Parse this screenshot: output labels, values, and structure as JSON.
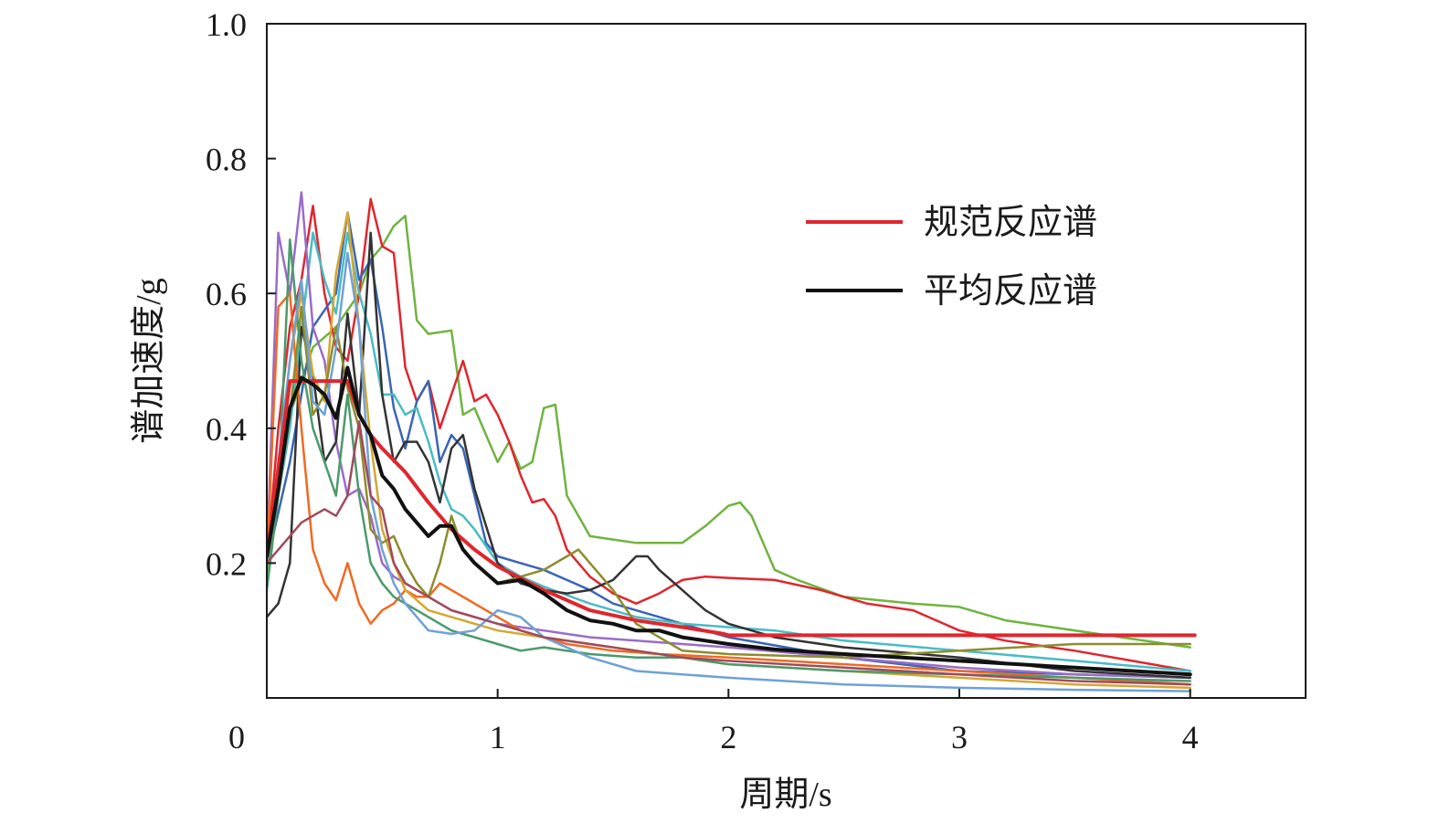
{
  "chart_data": {
    "type": "line",
    "xlabel": "周期/s",
    "ylabel": "谱加速度/g",
    "xlim": [
      0,
      4.5
    ],
    "ylim": [
      0,
      1.0
    ],
    "x_ticks": [
      {
        "value": 0,
        "label": "0"
      },
      {
        "value": 1,
        "label": "1"
      },
      {
        "value": 2,
        "label": "2"
      },
      {
        "value": 3,
        "label": "3"
      },
      {
        "value": 4,
        "label": "4"
      }
    ],
    "y_ticks": [
      {
        "value": 0.2,
        "label": "0.2"
      },
      {
        "value": 0.4,
        "label": "0.4"
      },
      {
        "value": 0.6,
        "label": "0.6"
      },
      {
        "value": 0.8,
        "label": "0.8"
      },
      {
        "value": 1.0,
        "label": "1.0"
      }
    ],
    "grid": false,
    "legend_position": "upper-right",
    "legend": [
      {
        "label": "规范反应谱",
        "color": "#e0262e"
      },
      {
        "label": "平均反应谱",
        "color": "#111111"
      }
    ],
    "series": [
      {
        "name": "规范反应谱",
        "color": "#e0262e",
        "width": 4,
        "x": [
          0.0,
          0.1,
          0.2,
          0.3,
          0.35,
          0.4,
          0.45,
          0.5,
          0.6,
          0.7,
          0.8,
          0.9,
          1.0,
          1.2,
          1.4,
          1.6,
          1.8,
          1.98,
          2.0,
          3.0,
          4.02
        ],
        "y": [
          0.21,
          0.47,
          0.47,
          0.47,
          0.47,
          0.42,
          0.39,
          0.37,
          0.335,
          0.29,
          0.25,
          0.22,
          0.195,
          0.16,
          0.13,
          0.115,
          0.105,
          0.095,
          0.093,
          0.093,
          0.093
        ]
      },
      {
        "name": "平均反应谱",
        "color": "#111111",
        "width": 4,
        "x": [
          0.0,
          0.05,
          0.1,
          0.15,
          0.2,
          0.25,
          0.3,
          0.35,
          0.4,
          0.45,
          0.5,
          0.55,
          0.6,
          0.7,
          0.75,
          0.8,
          0.85,
          0.9,
          1.0,
          1.1,
          1.2,
          1.3,
          1.4,
          1.5,
          1.6,
          1.7,
          1.8,
          1.9,
          2.0,
          2.2,
          2.5,
          3.0,
          3.5,
          4.0
        ],
        "y": [
          0.21,
          0.31,
          0.43,
          0.475,
          0.465,
          0.45,
          0.415,
          0.49,
          0.42,
          0.39,
          0.33,
          0.31,
          0.28,
          0.24,
          0.255,
          0.255,
          0.22,
          0.2,
          0.17,
          0.175,
          0.155,
          0.13,
          0.115,
          0.11,
          0.1,
          0.1,
          0.09,
          0.085,
          0.08,
          0.072,
          0.065,
          0.055,
          0.045,
          0.035
        ]
      },
      {
        "color": "#6fb43f",
        "width": 2.5,
        "x": [
          0.0,
          0.1,
          0.2,
          0.3,
          0.4,
          0.45,
          0.5,
          0.55,
          0.6,
          0.65,
          0.7,
          0.8,
          0.85,
          0.9,
          1.0,
          1.05,
          1.1,
          1.15,
          1.2,
          1.25,
          1.3,
          1.4,
          1.5,
          1.6,
          1.7,
          1.8,
          1.9,
          2.0,
          2.05,
          2.1,
          2.2,
          2.3,
          2.5,
          2.8,
          3.0,
          3.2,
          4.0
        ],
        "y": [
          0.18,
          0.42,
          0.52,
          0.55,
          0.6,
          0.65,
          0.67,
          0.7,
          0.715,
          0.56,
          0.54,
          0.545,
          0.42,
          0.43,
          0.35,
          0.38,
          0.34,
          0.35,
          0.43,
          0.435,
          0.3,
          0.24,
          0.235,
          0.23,
          0.23,
          0.23,
          0.255,
          0.285,
          0.29,
          0.27,
          0.19,
          0.175,
          0.15,
          0.14,
          0.135,
          0.115,
          0.075
        ]
      },
      {
        "color": "#e0262e",
        "width": 2.5,
        "x": [
          0.0,
          0.05,
          0.1,
          0.15,
          0.2,
          0.25,
          0.3,
          0.35,
          0.4,
          0.45,
          0.5,
          0.55,
          0.6,
          0.65,
          0.7,
          0.75,
          0.8,
          0.85,
          0.9,
          0.95,
          1.0,
          1.05,
          1.1,
          1.15,
          1.2,
          1.25,
          1.3,
          1.4,
          1.5,
          1.6,
          1.7,
          1.8,
          1.9,
          2.0,
          2.2,
          2.4,
          2.6,
          2.8,
          3.0,
          3.2,
          3.5,
          4.0
        ],
        "y": [
          0.2,
          0.4,
          0.55,
          0.62,
          0.73,
          0.6,
          0.52,
          0.5,
          0.6,
          0.74,
          0.67,
          0.66,
          0.49,
          0.44,
          0.47,
          0.4,
          0.45,
          0.5,
          0.44,
          0.45,
          0.42,
          0.38,
          0.33,
          0.29,
          0.295,
          0.27,
          0.22,
          0.18,
          0.155,
          0.14,
          0.155,
          0.175,
          0.18,
          0.178,
          0.175,
          0.16,
          0.14,
          0.13,
          0.1,
          0.085,
          0.07,
          0.04
        ]
      },
      {
        "color": "#3a65b4",
        "width": 2.5,
        "x": [
          0.0,
          0.1,
          0.2,
          0.3,
          0.35,
          0.4,
          0.45,
          0.5,
          0.55,
          0.6,
          0.65,
          0.7,
          0.75,
          0.8,
          0.85,
          0.9,
          0.95,
          1.0,
          1.1,
          1.2,
          1.3,
          1.4,
          1.5,
          1.7,
          2.0,
          2.5,
          3.0,
          3.5,
          4.0
        ],
        "y": [
          0.2,
          0.35,
          0.55,
          0.6,
          0.72,
          0.62,
          0.65,
          0.55,
          0.43,
          0.37,
          0.44,
          0.47,
          0.35,
          0.39,
          0.37,
          0.3,
          0.23,
          0.21,
          0.2,
          0.19,
          0.175,
          0.16,
          0.14,
          0.12,
          0.09,
          0.06,
          0.04,
          0.035,
          0.03
        ]
      },
      {
        "color": "#49bcc4",
        "width": 2.5,
        "x": [
          0.0,
          0.1,
          0.2,
          0.25,
          0.3,
          0.35,
          0.4,
          0.45,
          0.5,
          0.55,
          0.6,
          0.65,
          0.7,
          0.75,
          0.8,
          0.85,
          0.9,
          1.0,
          1.1,
          1.2,
          1.4,
          1.6,
          1.8,
          2.0,
          2.2,
          2.5,
          3.0,
          3.5,
          4.0
        ],
        "y": [
          0.2,
          0.4,
          0.69,
          0.62,
          0.57,
          0.69,
          0.6,
          0.54,
          0.45,
          0.45,
          0.42,
          0.43,
          0.38,
          0.32,
          0.28,
          0.27,
          0.25,
          0.2,
          0.18,
          0.165,
          0.14,
          0.12,
          0.11,
          0.105,
          0.1,
          0.085,
          0.07,
          0.055,
          0.04
        ]
      },
      {
        "color": "#9a6cc8",
        "width": 2.5,
        "x": [
          0.0,
          0.05,
          0.1,
          0.15,
          0.2,
          0.25,
          0.3,
          0.35,
          0.4,
          0.45,
          0.5,
          0.55,
          0.6,
          0.7,
          0.8,
          0.9,
          1.0,
          1.2,
          1.4,
          1.6,
          1.8,
          2.0,
          2.5,
          3.0,
          3.5,
          4.0
        ],
        "y": [
          0.2,
          0.69,
          0.6,
          0.75,
          0.55,
          0.5,
          0.38,
          0.3,
          0.31,
          0.27,
          0.2,
          0.18,
          0.17,
          0.15,
          0.13,
          0.12,
          0.11,
          0.1,
          0.09,
          0.085,
          0.08,
          0.075,
          0.06,
          0.045,
          0.035,
          0.03
        ]
      },
      {
        "color": "#333333",
        "width": 2.5,
        "x": [
          0.0,
          0.05,
          0.1,
          0.15,
          0.2,
          0.25,
          0.3,
          0.35,
          0.4,
          0.45,
          0.5,
          0.55,
          0.6,
          0.65,
          0.7,
          0.75,
          0.8,
          0.85,
          0.9,
          1.0,
          1.1,
          1.2,
          1.3,
          1.4,
          1.5,
          1.6,
          1.65,
          1.7,
          1.8,
          1.9,
          2.0,
          2.2,
          2.5,
          3.0,
          3.5,
          4.0
        ],
        "y": [
          0.12,
          0.14,
          0.2,
          0.55,
          0.48,
          0.35,
          0.38,
          0.57,
          0.42,
          0.69,
          0.45,
          0.35,
          0.38,
          0.38,
          0.35,
          0.29,
          0.37,
          0.39,
          0.31,
          0.2,
          0.17,
          0.16,
          0.155,
          0.16,
          0.175,
          0.21,
          0.21,
          0.19,
          0.16,
          0.13,
          0.11,
          0.09,
          0.075,
          0.06,
          0.04,
          0.03
        ]
      },
      {
        "color": "#f06a22",
        "width": 2.5,
        "x": [
          0.0,
          0.05,
          0.1,
          0.15,
          0.2,
          0.25,
          0.3,
          0.35,
          0.4,
          0.45,
          0.5,
          0.55,
          0.6,
          0.65,
          0.7,
          0.75,
          0.8,
          0.85,
          0.9,
          1.0,
          1.1,
          1.2,
          1.3,
          1.4,
          1.5,
          1.7,
          2.0,
          2.5,
          3.0,
          3.5,
          4.0
        ],
        "y": [
          0.2,
          0.58,
          0.6,
          0.4,
          0.22,
          0.17,
          0.145,
          0.2,
          0.14,
          0.11,
          0.13,
          0.14,
          0.16,
          0.15,
          0.15,
          0.17,
          0.16,
          0.15,
          0.14,
          0.12,
          0.1,
          0.09,
          0.08,
          0.075,
          0.07,
          0.065,
          0.06,
          0.05,
          0.04,
          0.03,
          0.02
        ]
      },
      {
        "color": "#d4a732",
        "width": 2.5,
        "x": [
          0.0,
          0.05,
          0.1,
          0.15,
          0.2,
          0.25,
          0.3,
          0.35,
          0.4,
          0.45,
          0.5,
          0.55,
          0.6,
          0.7,
          0.8,
          0.9,
          1.0,
          1.2,
          1.4,
          1.6,
          1.8,
          2.0,
          2.5,
          3.0,
          3.5,
          4.0
        ],
        "y": [
          0.2,
          0.35,
          0.5,
          0.6,
          0.48,
          0.44,
          0.63,
          0.72,
          0.55,
          0.38,
          0.25,
          0.2,
          0.16,
          0.13,
          0.12,
          0.11,
          0.1,
          0.09,
          0.08,
          0.07,
          0.06,
          0.05,
          0.04,
          0.03,
          0.02,
          0.015
        ]
      },
      {
        "color": "#8c8d2f",
        "width": 2.5,
        "x": [
          0.0,
          0.05,
          0.1,
          0.15,
          0.2,
          0.25,
          0.3,
          0.35,
          0.4,
          0.45,
          0.5,
          0.55,
          0.6,
          0.65,
          0.7,
          0.75,
          0.8,
          0.85,
          0.9,
          1.0,
          1.1,
          1.2,
          1.3,
          1.35,
          1.4,
          1.5,
          1.6,
          1.7,
          1.8,
          2.0,
          2.5,
          3.0,
          3.5,
          4.0
        ],
        "y": [
          0.2,
          0.3,
          0.42,
          0.58,
          0.42,
          0.45,
          0.55,
          0.46,
          0.4,
          0.25,
          0.23,
          0.24,
          0.2,
          0.17,
          0.15,
          0.2,
          0.27,
          0.22,
          0.2,
          0.17,
          0.18,
          0.19,
          0.21,
          0.22,
          0.2,
          0.16,
          0.11,
          0.09,
          0.07,
          0.065,
          0.06,
          0.07,
          0.08,
          0.08
        ]
      },
      {
        "color": "#4a9a6b",
        "width": 2.5,
        "x": [
          0.0,
          0.05,
          0.1,
          0.15,
          0.2,
          0.25,
          0.3,
          0.35,
          0.4,
          0.45,
          0.5,
          0.55,
          0.6,
          0.7,
          0.8,
          0.9,
          1.0,
          1.1,
          1.2,
          1.4,
          1.6,
          1.8,
          2.0,
          2.5,
          3.0,
          3.5,
          4.0
        ],
        "y": [
          0.16,
          0.3,
          0.68,
          0.5,
          0.4,
          0.35,
          0.3,
          0.45,
          0.3,
          0.2,
          0.17,
          0.15,
          0.14,
          0.12,
          0.1,
          0.09,
          0.08,
          0.07,
          0.075,
          0.065,
          0.06,
          0.06,
          0.05,
          0.04,
          0.035,
          0.03,
          0.025
        ]
      },
      {
        "color": "#6fa1d8",
        "width": 2.5,
        "x": [
          0.0,
          0.05,
          0.1,
          0.15,
          0.2,
          0.25,
          0.3,
          0.35,
          0.4,
          0.45,
          0.5,
          0.55,
          0.6,
          0.7,
          0.8,
          0.9,
          1.0,
          1.1,
          1.2,
          1.4,
          1.6,
          1.8,
          2.0,
          2.5,
          3.0,
          3.5,
          4.0
        ],
        "y": [
          0.2,
          0.35,
          0.5,
          0.62,
          0.44,
          0.42,
          0.52,
          0.66,
          0.55,
          0.3,
          0.22,
          0.17,
          0.14,
          0.1,
          0.095,
          0.1,
          0.13,
          0.12,
          0.09,
          0.06,
          0.04,
          0.035,
          0.03,
          0.02,
          0.015,
          0.012,
          0.01
        ]
      },
      {
        "color": "#a04a5c",
        "width": 2.5,
        "x": [
          0.0,
          0.1,
          0.15,
          0.2,
          0.25,
          0.3,
          0.35,
          0.4,
          0.45,
          0.5,
          0.55,
          0.6,
          0.7,
          0.8,
          0.9,
          1.0,
          1.2,
          1.4,
          1.6,
          1.8,
          2.0,
          2.5,
          3.0,
          3.5,
          4.0
        ],
        "y": [
          0.2,
          0.24,
          0.26,
          0.27,
          0.28,
          0.27,
          0.3,
          0.41,
          0.3,
          0.28,
          0.2,
          0.17,
          0.15,
          0.13,
          0.12,
          0.11,
          0.09,
          0.08,
          0.07,
          0.06,
          0.055,
          0.045,
          0.035,
          0.025,
          0.02
        ]
      }
    ]
  }
}
